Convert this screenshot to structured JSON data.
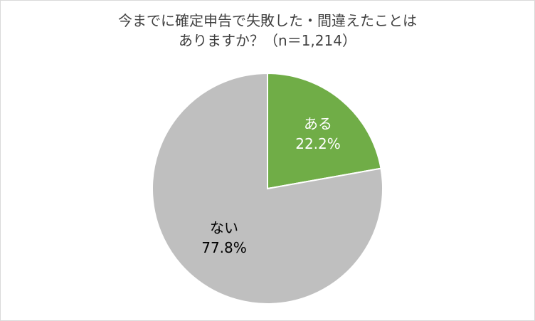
{
  "title_line1": "今までに確定申告で失敗した・間違えたことは",
  "title_line2": "ありますか？（n＝1,214）",
  "chart_data": {
    "type": "pie",
    "slices": [
      {
        "name": "ある",
        "value": 22.2,
        "label": "22.2%",
        "color": "#70ad47",
        "label_color": "#ffffff"
      },
      {
        "name": "ない",
        "value": 77.8,
        "label": "77.8%",
        "color": "#bfbfbf",
        "label_color": "#000000"
      }
    ],
    "start": "12 o'clock",
    "direction": "clockwise",
    "slice_border_color": "#ffffff"
  }
}
